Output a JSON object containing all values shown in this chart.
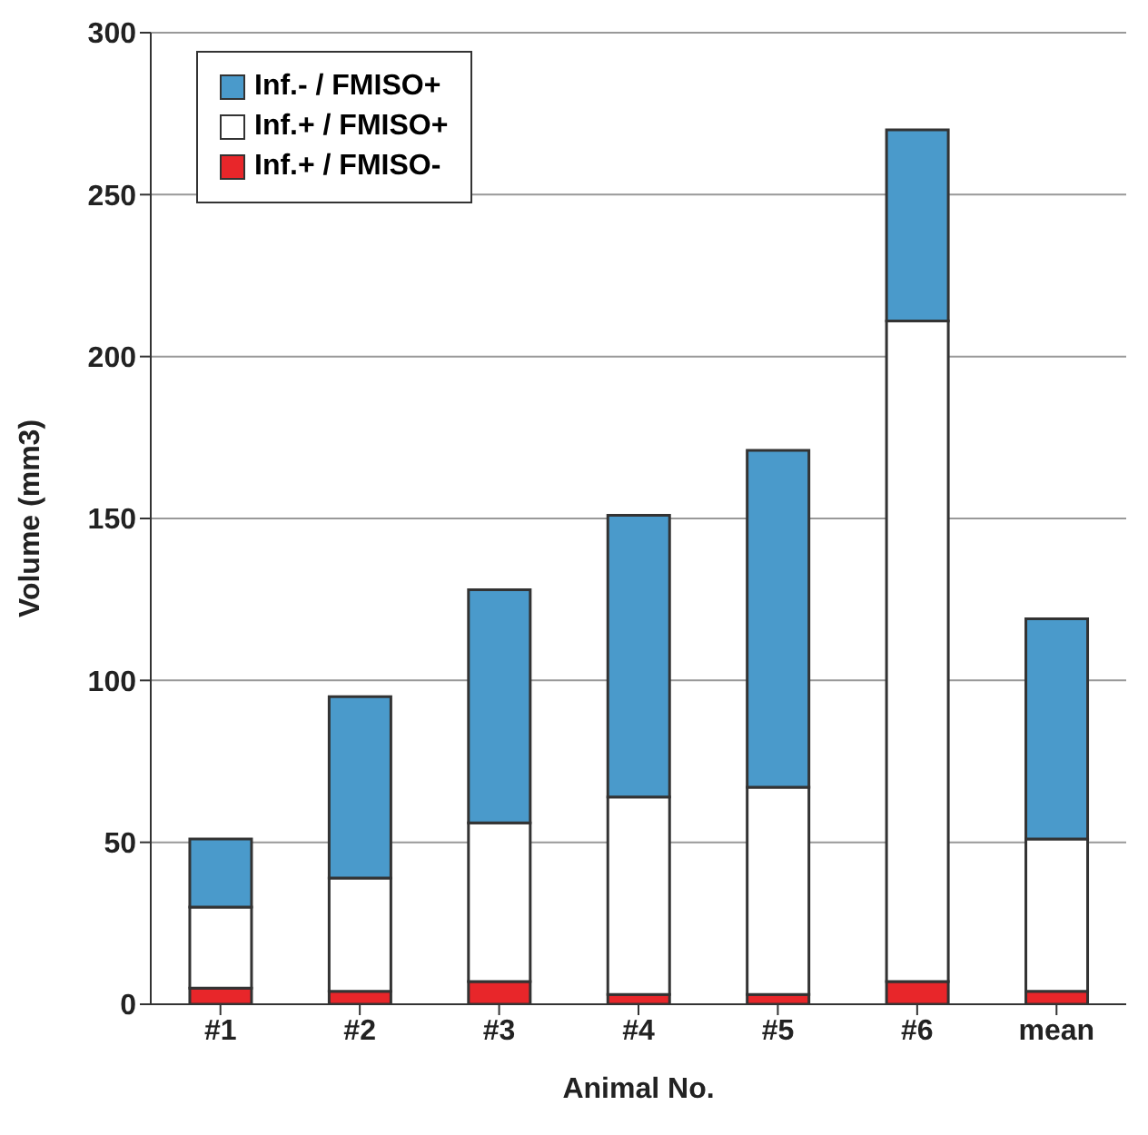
{
  "chart_data": {
    "type": "bar",
    "stacked": true,
    "xlabel": "Animal No.",
    "ylabel": "Volume (mm3)",
    "categories": [
      "#1",
      "#2",
      "#3",
      "#4",
      "#5",
      "#6",
      "mean"
    ],
    "series": [
      {
        "name": "Inf.+ / FMISO-",
        "color": "#e8262a",
        "values": [
          5,
          4,
          7,
          3,
          3,
          7,
          4
        ]
      },
      {
        "name": "Inf.+ / FMISO+",
        "color": "#ffffff",
        "values": [
          25,
          35,
          49,
          61,
          64,
          204,
          47
        ]
      },
      {
        "name": "Inf.- / FMISO+",
        "color": "#4a9acb",
        "values": [
          21,
          56,
          72,
          87,
          104,
          59,
          68
        ]
      }
    ],
    "ylim": [
      0,
      300
    ],
    "yticks": [
      0,
      50,
      100,
      150,
      200,
      250,
      300
    ],
    "grid": "y",
    "legend": "top left"
  }
}
